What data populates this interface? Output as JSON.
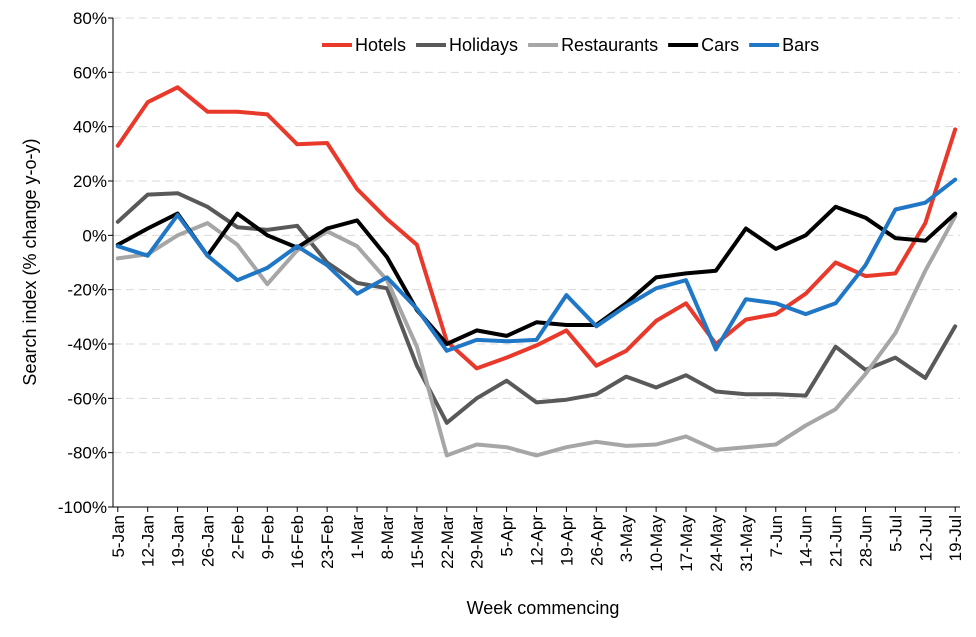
{
  "chart_data": {
    "type": "line",
    "title": "",
    "xlabel": "Week commencing",
    "ylabel": "Search index (% change y-o-y)",
    "ylim": [
      -100,
      80
    ],
    "yticks": [
      80,
      60,
      40,
      20,
      0,
      -20,
      -40,
      -60,
      -80,
      -100
    ],
    "ytick_labels": [
      "80%",
      "60%",
      "40%",
      "20%",
      "0%",
      "-20%",
      "-40%",
      "-60%",
      "-80%",
      "-100%"
    ],
    "grid": true,
    "legend_position": "top-right",
    "categories": [
      "5-Jan",
      "12-Jan",
      "19-Jan",
      "26-Jan",
      "2-Feb",
      "9-Feb",
      "16-Feb",
      "23-Feb",
      "1-Mar",
      "8-Mar",
      "15-Mar",
      "22-Mar",
      "29-Mar",
      "5-Apr",
      "12-Apr",
      "19-Apr",
      "26-Apr",
      "3-May",
      "10-May",
      "17-May",
      "24-May",
      "31-May",
      "7-Jun",
      "14-Jun",
      "21-Jun",
      "28-Jun",
      "5-Jul",
      "12-Jul",
      "19-Jul"
    ],
    "series": [
      {
        "name": "Hotels",
        "color": "#e8392b",
        "values": [
          33,
          49,
          54.5,
          45.5,
          45.5,
          44.5,
          33.5,
          34,
          17,
          6,
          -3.5,
          -39,
          -49,
          -45,
          -40.5,
          -35,
          -48,
          -42.5,
          -31.5,
          -25,
          -40,
          -31,
          -29,
          -21.5,
          -10,
          -15,
          -14,
          4.5,
          39
        ]
      },
      {
        "name": "Holidays",
        "color": "#595959",
        "values": [
          5,
          15,
          15.5,
          10.5,
          3,
          2,
          3.5,
          -10,
          -17.5,
          -19.5,
          -48,
          -69,
          -60,
          -53.5,
          -61.5,
          -60.5,
          -58.5,
          -52,
          -56,
          -51.5,
          -57.5,
          -58.5,
          -58.5,
          -59,
          -41,
          -49.5,
          -45,
          -52.5,
          -33.5
        ]
      },
      {
        "name": "Restaurants",
        "color": "#a6a6a6",
        "values": [
          -8.5,
          -7,
          0,
          4.5,
          -3.5,
          -18,
          -5.5,
          1.5,
          -4,
          -16.5,
          -41,
          -81,
          -77,
          -78,
          -81,
          -78,
          -76,
          -77.5,
          -77,
          -74,
          -79,
          -78,
          -77,
          -70,
          -64,
          -51,
          -36,
          -13,
          7
        ]
      },
      {
        "name": "Cars",
        "color": "#000000",
        "values": [
          -3.5,
          2.5,
          8,
          -7.5,
          8,
          0,
          -4.5,
          2.5,
          5.5,
          -8,
          -27.5,
          -40,
          -35,
          -37,
          -32,
          -33,
          -33,
          -25,
          -15.5,
          -14,
          -13,
          2.5,
          -5,
          0,
          10.5,
          6.5,
          -1,
          -2,
          8
        ]
      },
      {
        "name": "Bars",
        "color": "#1f77c5",
        "values": [
          -4,
          -7.5,
          7.5,
          -7.5,
          -16.5,
          -12,
          -4,
          -11,
          -21.5,
          -15.5,
          -27,
          -42.5,
          -38.5,
          -39,
          -38.5,
          -22,
          -33.5,
          -26,
          -19.5,
          -16.5,
          -42,
          -23.5,
          -25,
          -29,
          -25,
          -11,
          9.5,
          12,
          20.5
        ]
      }
    ]
  }
}
